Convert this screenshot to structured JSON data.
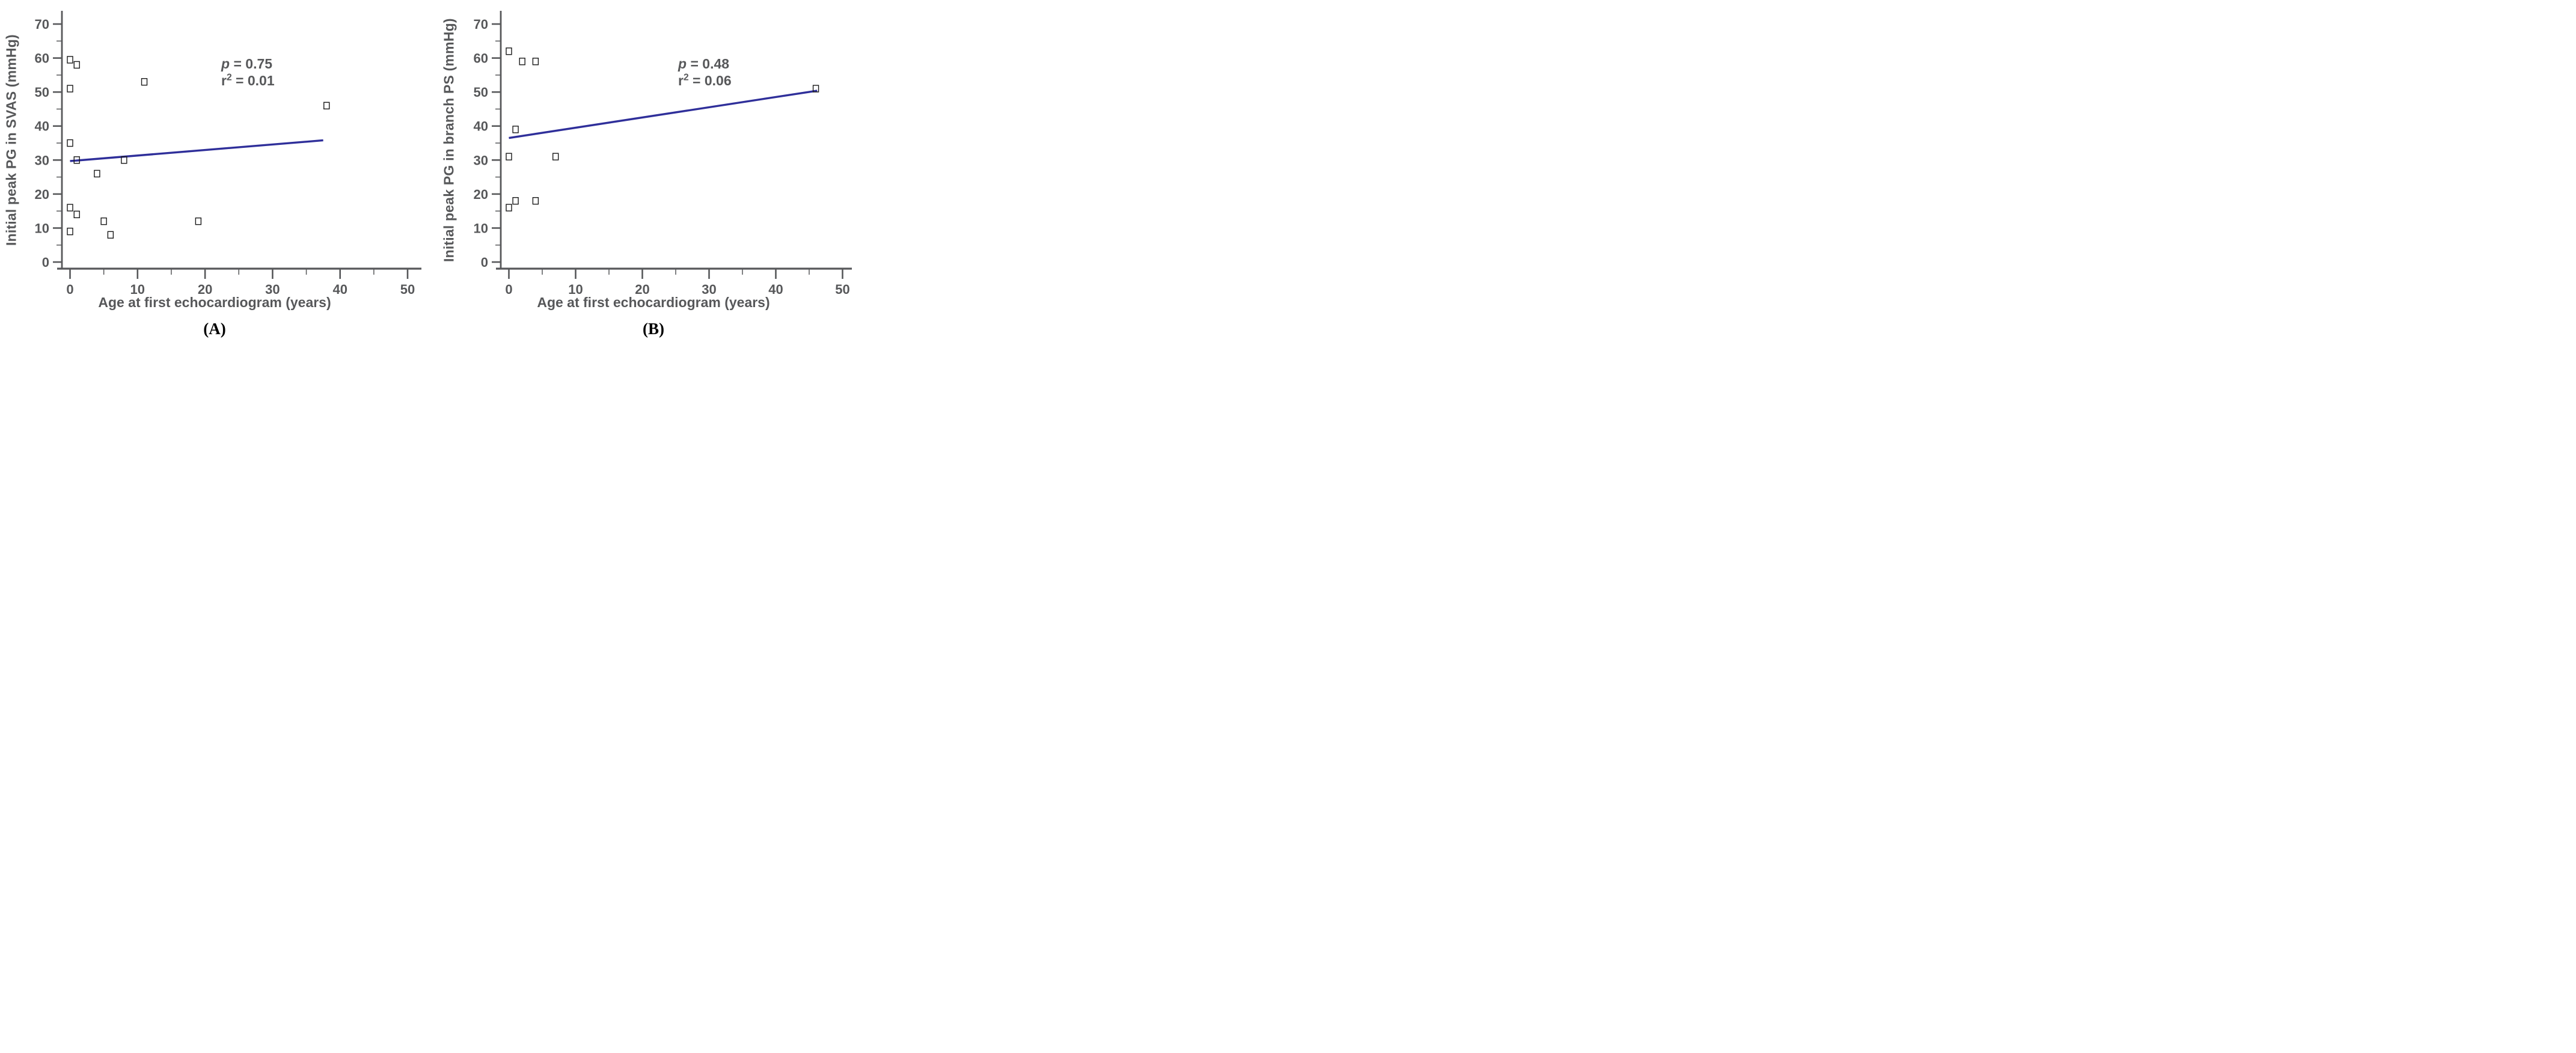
{
  "chart_data": [
    {
      "type": "scatter",
      "panel_label": "(A)",
      "xlabel": "Age at first echocardiogram (years)",
      "ylabel": "Initial peak PG in SVAS (mmHg)",
      "xlim": [
        0,
        52
      ],
      "ylim": [
        0,
        73
      ],
      "x_ticks": [
        0,
        10,
        20,
        30,
        40,
        50
      ],
      "y_ticks": [
        0,
        10,
        20,
        30,
        40,
        50,
        60,
        70
      ],
      "minor_tick_step": 5,
      "grid": false,
      "marker": "open-square",
      "points": [
        [
          0,
          59.5
        ],
        [
          1,
          58
        ],
        [
          0,
          51
        ],
        [
          11,
          53
        ],
        [
          38,
          46
        ],
        [
          0,
          35
        ],
        [
          1,
          30
        ],
        [
          8,
          30
        ],
        [
          4,
          26
        ],
        [
          0,
          16
        ],
        [
          1,
          14
        ],
        [
          5,
          12
        ],
        [
          19,
          12
        ],
        [
          0,
          9
        ],
        [
          6,
          8
        ]
      ],
      "regression_line": {
        "x1": 0,
        "y1": 29.7,
        "x2": 37.5,
        "y2": 35.8
      },
      "annotation": {
        "p_sym": "p",
        "p_rest": " = 0.75",
        "r_sym": "r",
        "r_sup": "2",
        "r_rest": " = 0.01"
      },
      "colors": {
        "line": "#2f2f9a",
        "axis_text": "#57585a",
        "marker": "#1a1a1a"
      }
    },
    {
      "type": "scatter",
      "panel_label": "(B)",
      "xlabel": "Age at first echocardiogram (years)",
      "ylabel": "Initial peak PG in branch PS (mmHg)",
      "xlim": [
        0,
        52
      ],
      "ylim": [
        0,
        73
      ],
      "x_ticks": [
        0,
        10,
        20,
        30,
        40,
        50
      ],
      "y_ticks": [
        0,
        10,
        20,
        30,
        40,
        50,
        60,
        70
      ],
      "minor_tick_step": 5,
      "grid": false,
      "marker": "open-square",
      "points": [
        [
          0,
          62
        ],
        [
          2,
          59
        ],
        [
          4,
          59
        ],
        [
          46,
          51
        ],
        [
          1,
          39
        ],
        [
          0,
          31
        ],
        [
          7,
          31
        ],
        [
          1,
          18
        ],
        [
          4,
          18
        ],
        [
          0,
          16
        ]
      ],
      "regression_line": {
        "x1": 0,
        "y1": 36.5,
        "x2": 46.2,
        "y2": 50.4
      },
      "annotation": {
        "p_sym": "p",
        "p_rest": " = 0.48",
        "r_sym": "r",
        "r_sup": "2",
        "r_rest": " = 0.06"
      },
      "colors": {
        "line": "#2f2f9a",
        "axis_text": "#57585a",
        "marker": "#1a1a1a"
      }
    }
  ]
}
